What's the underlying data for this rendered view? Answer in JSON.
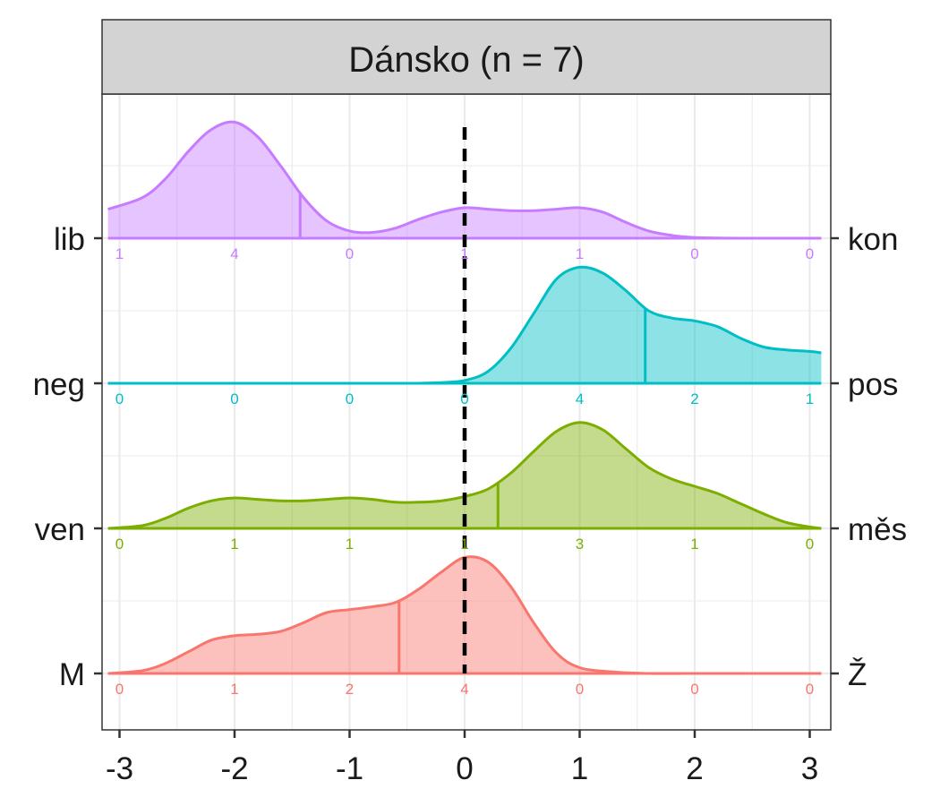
{
  "chart_data": {
    "type": "ridgeline",
    "title": "Dánsko (n = 7)",
    "xlabel": "",
    "ylabel": "",
    "xlim": [
      -3.1,
      3.1
    ],
    "x_ticks": [
      -3,
      -2,
      -1,
      0,
      1,
      2,
      3
    ],
    "x_tick_labels": [
      "-3",
      "-2",
      "-1",
      "0",
      "1",
      "2",
      "3"
    ],
    "reference_line_x": 0,
    "grid": true,
    "grid_x": [
      -3,
      -2.5,
      -2,
      -1.5,
      -1,
      -0.5,
      0,
      0.5,
      1,
      1.5,
      2,
      2.5,
      3
    ],
    "grid_y": [
      0,
      0.5,
      1,
      1.5,
      2,
      2.5,
      3,
      3.5
    ],
    "count_positions": [
      -3,
      -2,
      -1,
      0,
      1,
      2,
      3
    ],
    "series": [
      {
        "left_label": "M",
        "right_label": "Ž",
        "color": "#F8766D",
        "counts": [
          0,
          1,
          2,
          4,
          0,
          0,
          0
        ],
        "mean": -0.57,
        "density_x": [
          -3.1,
          -2.8,
          -2.6,
          -2.4,
          -2.2,
          -2.0,
          -1.8,
          -1.6,
          -1.4,
          -1.2,
          -1.0,
          -0.8,
          -0.6,
          -0.4,
          -0.2,
          0.0,
          0.2,
          0.4,
          0.6,
          0.8,
          1.0,
          1.3,
          1.6,
          2.0,
          2.5,
          3.1
        ],
        "density_y": [
          0.0,
          0.02,
          0.07,
          0.15,
          0.23,
          0.26,
          0.27,
          0.29,
          0.35,
          0.42,
          0.44,
          0.46,
          0.49,
          0.58,
          0.7,
          0.8,
          0.77,
          0.6,
          0.35,
          0.14,
          0.04,
          0.01,
          0.0,
          0.0,
          0.0,
          0.0
        ]
      },
      {
        "left_label": "ven",
        "right_label": "měs",
        "color": "#7CAE00",
        "counts": [
          0,
          1,
          1,
          1,
          3,
          1,
          0
        ],
        "mean": 0.29,
        "density_x": [
          -3.1,
          -2.8,
          -2.6,
          -2.4,
          -2.2,
          -2.0,
          -1.8,
          -1.6,
          -1.4,
          -1.2,
          -1.0,
          -0.8,
          -0.6,
          -0.4,
          -0.2,
          0.0,
          0.2,
          0.4,
          0.6,
          0.8,
          1.0,
          1.2,
          1.4,
          1.6,
          1.8,
          2.0,
          2.2,
          2.4,
          2.6,
          2.8,
          3.0,
          3.1
        ],
        "density_y": [
          0.0,
          0.02,
          0.07,
          0.14,
          0.19,
          0.21,
          0.2,
          0.19,
          0.19,
          0.2,
          0.21,
          0.2,
          0.18,
          0.18,
          0.19,
          0.22,
          0.27,
          0.38,
          0.53,
          0.67,
          0.73,
          0.68,
          0.55,
          0.42,
          0.34,
          0.29,
          0.24,
          0.17,
          0.1,
          0.04,
          0.01,
          0.0
        ]
      },
      {
        "left_label": "neg",
        "right_label": "pos",
        "color": "#00BFC4",
        "counts": [
          0,
          0,
          0,
          0,
          4,
          2,
          1
        ],
        "mean": 1.57,
        "density_x": [
          -3.1,
          -2.0,
          -1.0,
          -0.5,
          -0.2,
          0.0,
          0.2,
          0.4,
          0.6,
          0.8,
          1.0,
          1.2,
          1.4,
          1.6,
          1.8,
          2.0,
          2.2,
          2.4,
          2.6,
          2.8,
          3.0,
          3.1
        ],
        "density_y": [
          0.0,
          0.0,
          0.0,
          0.0,
          0.005,
          0.02,
          0.08,
          0.24,
          0.48,
          0.72,
          0.8,
          0.76,
          0.64,
          0.5,
          0.45,
          0.43,
          0.39,
          0.31,
          0.25,
          0.23,
          0.22,
          0.21
        ]
      },
      {
        "left_label": "lib",
        "right_label": "kon",
        "color": "#C77CFF",
        "counts": [
          1,
          4,
          0,
          1,
          1,
          0,
          0
        ],
        "mean": -1.43,
        "density_x": [
          -3.1,
          -2.8,
          -2.6,
          -2.4,
          -2.2,
          -2.0,
          -1.8,
          -1.6,
          -1.4,
          -1.2,
          -1.0,
          -0.8,
          -0.6,
          -0.4,
          -0.2,
          0.0,
          0.2,
          0.4,
          0.6,
          0.8,
          1.0,
          1.2,
          1.4,
          1.6,
          1.8,
          2.0,
          2.5,
          3.1
        ],
        "density_y": [
          0.2,
          0.28,
          0.41,
          0.6,
          0.75,
          0.8,
          0.7,
          0.5,
          0.28,
          0.12,
          0.05,
          0.04,
          0.07,
          0.13,
          0.18,
          0.21,
          0.2,
          0.19,
          0.19,
          0.2,
          0.21,
          0.18,
          0.11,
          0.05,
          0.02,
          0.005,
          0.0,
          0.0
        ]
      }
    ]
  }
}
